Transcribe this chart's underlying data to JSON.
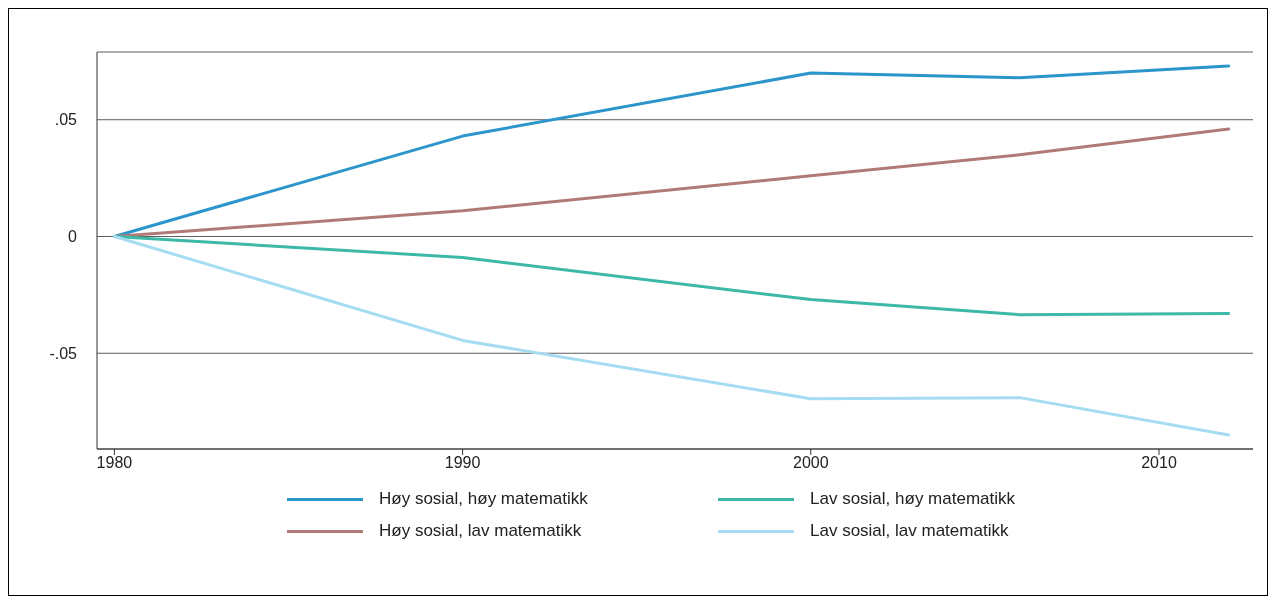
{
  "chart_data": {
    "type": "line",
    "x": [
      1980,
      1990,
      2000,
      2006,
      2012
    ],
    "series": [
      {
        "name": "Høy sosial, høy matematikk",
        "color": "#2b95cc",
        "values": [
          0,
          0.043,
          0.07,
          0.068,
          0.073
        ]
      },
      {
        "name": "Høy sosial, lav matematikk",
        "color": "#b07a78",
        "values": [
          0,
          0.011,
          0.026,
          0.035,
          0.046
        ]
      },
      {
        "name": "Lav sosial, høy matematikk",
        "color": "#3cb8a6",
        "values": [
          0,
          -0.009,
          -0.027,
          -0.0335,
          -0.033
        ]
      },
      {
        "name": "Lav sosial, lav matematikk",
        "color": "#a5dcf2",
        "values": [
          0,
          -0.0445,
          -0.0695,
          -0.069,
          -0.085
        ]
      }
    ],
    "xlim": [
      1979.5,
      2012.7
    ],
    "xticks": [
      1980,
      1990,
      2000,
      2010
    ],
    "ylim": [
      -0.091,
      0.079
    ],
    "yticks": [
      {
        "value": -0.05,
        "label": "-.05"
      },
      {
        "value": 0,
        "label": "0"
      },
      {
        "value": 0.05,
        "label": ".05"
      }
    ],
    "grid": "y",
    "legend": "bottom"
  }
}
